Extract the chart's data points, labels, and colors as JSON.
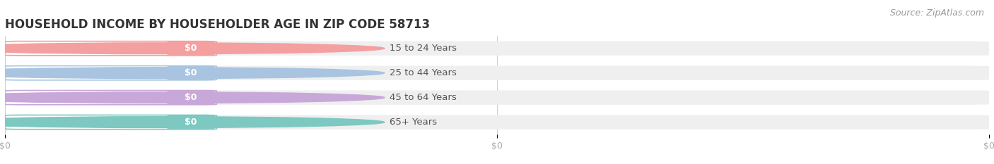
{
  "title": "HOUSEHOLD INCOME BY HOUSEHOLDER AGE IN ZIP CODE 58713",
  "source": "Source: ZipAtlas.com",
  "categories": [
    "15 to 24 Years",
    "25 to 44 Years",
    "45 to 64 Years",
    "65+ Years"
  ],
  "values": [
    0,
    0,
    0,
    0
  ],
  "bar_colors": [
    "#f4a0a0",
    "#a8c4e0",
    "#c8a8d8",
    "#7dc8c0"
  ],
  "bar_bg_color": "#efefef",
  "background_color": "#ffffff",
  "title_fontsize": 12,
  "label_fontsize": 9.5,
  "tick_fontsize": 9,
  "source_fontsize": 9,
  "tick_label_color": "#aaaaaa",
  "title_color": "#333333",
  "label_text_color": "#555555",
  "value_text_color": "#ffffff"
}
